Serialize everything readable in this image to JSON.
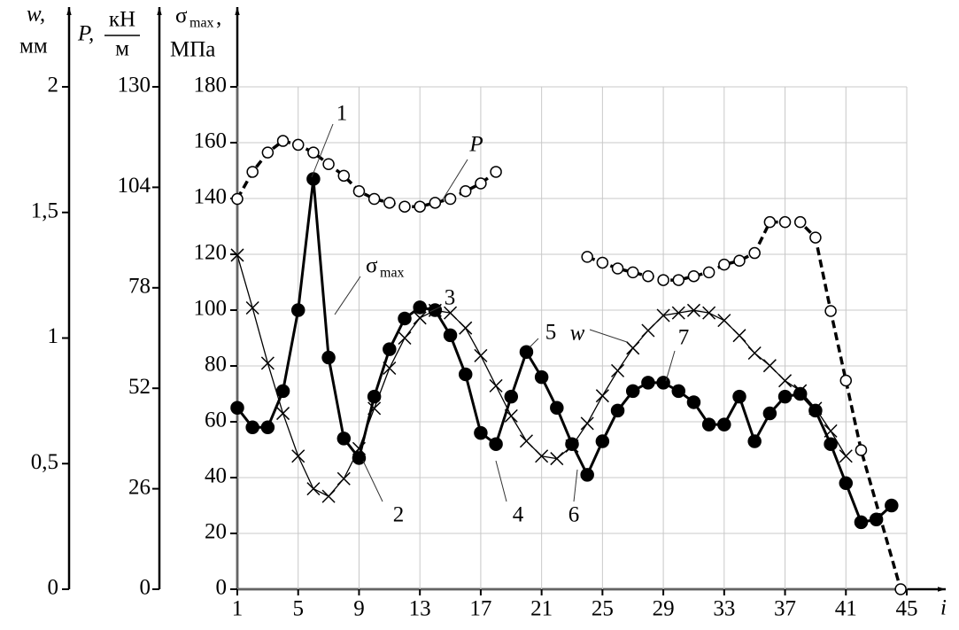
{
  "chart_data": {
    "type": "line",
    "xlabel": "i",
    "ylabel": {
      "symbol": "σ",
      "sub": "max",
      "sep": ",",
      "unit": "МПа"
    },
    "y2label": {
      "symbol": "P,",
      "num": "кН",
      "den": "м"
    },
    "y3label": {
      "symbol": "w,",
      "unit": "мм"
    },
    "xlim": [
      1,
      45
    ],
    "xticks": [
      1,
      5,
      9,
      13,
      17,
      21,
      25,
      29,
      33,
      37,
      41,
      45
    ],
    "ylim": [
      0,
      180
    ],
    "yticks": [
      0,
      20,
      40,
      60,
      80,
      100,
      120,
      140,
      160,
      180
    ],
    "y2lim": [
      0,
      130
    ],
    "y2ticks": [
      0,
      26,
      52,
      78,
      104,
      130
    ],
    "y3lim": [
      0,
      2
    ],
    "y3ticks": [
      0,
      {
        "value": 0.5,
        "label": "0,5"
      },
      1,
      {
        "value": 1.5,
        "label": "1,5"
      },
      2
    ],
    "grid": true,
    "series": [
      {
        "name": "σmax",
        "axis": "y",
        "color": "#000000",
        "marker": "filled-circle",
        "dashed": false,
        "width": 3,
        "x": [
          1,
          2,
          3,
          4,
          5,
          6,
          7,
          8,
          9,
          10,
          11,
          12,
          13,
          14,
          15,
          16,
          17,
          18,
          19,
          20,
          21,
          22,
          23,
          24,
          25,
          26,
          27,
          28,
          29,
          30,
          31,
          32,
          33,
          34,
          35,
          36,
          37,
          38,
          39,
          40,
          41,
          42,
          43,
          44
        ],
        "values": [
          65,
          58,
          58,
          71,
          100,
          147,
          83,
          54,
          47,
          69,
          86,
          97,
          101,
          100,
          91,
          77,
          56,
          52,
          69,
          85,
          76,
          65,
          52,
          41,
          53,
          64,
          71,
          74,
          74,
          71,
          67,
          59,
          59,
          69,
          53,
          63,
          69,
          70,
          64,
          52,
          38,
          24,
          25,
          30
        ]
      },
      {
        "name": "w",
        "axis": "y3",
        "color": "#000000",
        "marker": "cross",
        "dashed": false,
        "width": 1.3,
        "x": [
          1,
          2,
          3,
          4,
          5,
          6,
          7,
          8,
          9,
          10,
          11,
          12,
          13,
          14,
          15,
          16,
          17,
          18,
          19,
          20,
          21,
          22,
          23,
          24,
          25,
          26,
          27,
          28,
          29,
          30,
          31,
          32,
          33,
          34,
          35,
          36,
          37,
          38,
          39,
          40,
          41
        ],
        "values": [
          1.33,
          1.12,
          0.9,
          0.7,
          0.53,
          0.4,
          0.37,
          0.44,
          0.56,
          0.72,
          0.88,
          1.0,
          1.08,
          1.11,
          1.1,
          1.04,
          0.93,
          0.81,
          0.69,
          0.59,
          0.53,
          0.52,
          0.57,
          0.66,
          0.77,
          0.87,
          0.96,
          1.03,
          1.09,
          1.1,
          1.11,
          1.1,
          1.07,
          1.01,
          0.94,
          0.89,
          0.83,
          0.79,
          0.72,
          0.63,
          0.53
        ]
      },
      {
        "name": "P",
        "axis": "y2",
        "color": "#000000",
        "marker": "open-circle",
        "dashed": true,
        "width": 3.5,
        "x": [
          1,
          2,
          3,
          4,
          5,
          6,
          7,
          8,
          9,
          10,
          11,
          12,
          13,
          14,
          15,
          16,
          17,
          18,
          19,
          20,
          21,
          22,
          23,
          24,
          25,
          26,
          27,
          28,
          29,
          30,
          31,
          32,
          33,
          34,
          35,
          36,
          37,
          38,
          39,
          40,
          41,
          42,
          44.6
        ],
        "values": [
          101,
          108,
          113,
          116,
          115,
          113,
          110,
          107,
          103,
          101,
          100,
          99,
          99,
          100,
          101,
          103,
          105,
          108,
          null,
          null,
          null,
          null,
          null,
          86,
          84.5,
          83,
          82,
          81,
          80,
          80,
          81,
          82,
          84,
          85,
          87,
          95,
          95,
          95,
          91,
          72,
          54,
          36,
          0
        ]
      }
    ],
    "annotations": [
      {
        "text": "1"
      },
      {
        "text": "2"
      },
      {
        "text": "3"
      },
      {
        "text": "4"
      },
      {
        "text": "5"
      },
      {
        "text": "6"
      },
      {
        "text": "7"
      },
      {
        "text": "P"
      },
      {
        "text": "w"
      },
      {
        "text": "σ",
        "sub": "max"
      }
    ]
  }
}
